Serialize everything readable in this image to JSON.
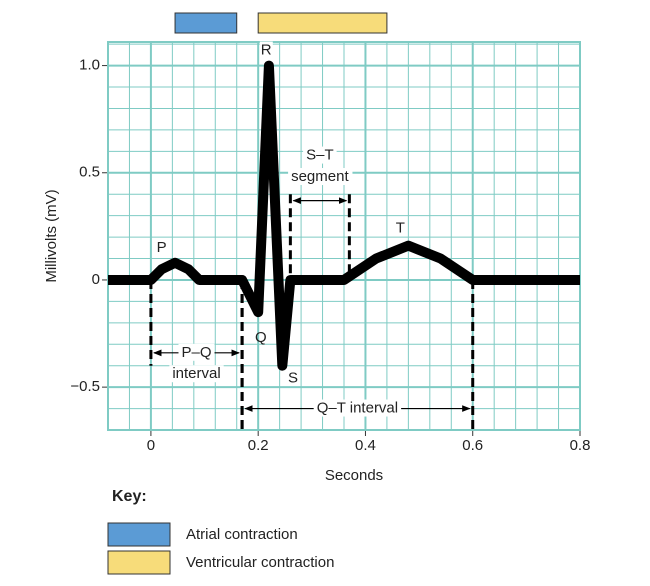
{
  "chart_data": {
    "type": "line",
    "x": [
      -0.08,
      0,
      0.02,
      0.045,
      0.07,
      0.09,
      0.17,
      0.2,
      0.22,
      0.245,
      0.26,
      0.36,
      0.42,
      0.48,
      0.54,
      0.6,
      0.8
    ],
    "series": [
      {
        "color": "#000000",
        "values": [
          0,
          0,
          0.05,
          0.08,
          0.05,
          0,
          0,
          -0.15,
          1.0,
          -0.4,
          0,
          0,
          0.1,
          0.16,
          0.1,
          0,
          0
        ]
      }
    ],
    "xlabel": "Seconds",
    "ylabel": "Millivolts (mV)",
    "xlim": [
      -0.08,
      0.8
    ],
    "ylim": [
      -0.7,
      1.11
    ],
    "xticks": [
      0,
      0.2,
      0.4,
      0.6,
      0.8
    ],
    "yticks": [
      {
        "value": -0.5,
        "label": "−0.5"
      },
      0,
      0.5,
      {
        "value": 1,
        "label": "1.0"
      }
    ],
    "grid": true,
    "grid_color": "#7fcbc4",
    "minor_grid": {
      "x": 0.04,
      "y": 0.1
    },
    "annotations": [
      "P",
      "Q",
      "R",
      "S",
      "T"
    ],
    "intervals": [
      {
        "label_lines": [
          "P–Q",
          "interval"
        ],
        "start": 0,
        "end": 0.17
      },
      {
        "label_lines": [
          "S–T",
          "segment"
        ],
        "start": 0.26,
        "end": 0.37
      },
      {
        "label_lines": [
          "Q–T interval"
        ],
        "start": 0.17,
        "end": 0.6
      }
    ],
    "contractions": [
      {
        "name": "Atrial contraction",
        "color": "#5b9bd5",
        "start": 0.045,
        "end": 0.16
      },
      {
        "name": "Ventricular contraction",
        "color": "#f7dc7a",
        "start": 0.2,
        "end": 0.44
      }
    ],
    "key_title": "Key:"
  }
}
